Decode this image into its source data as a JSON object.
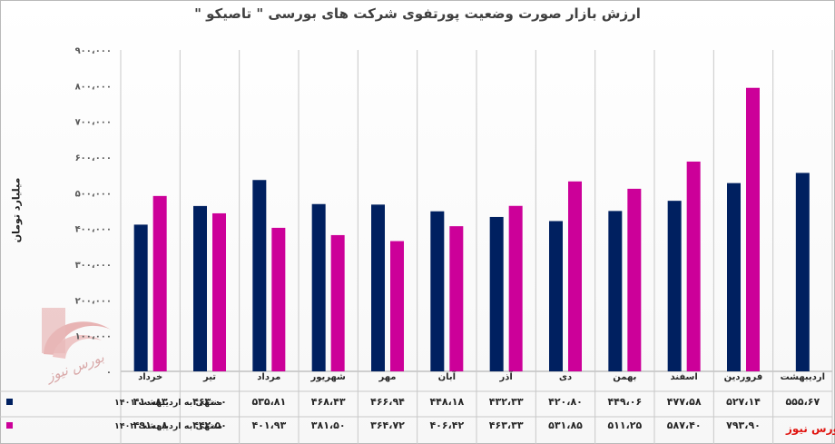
{
  "header": {
    "title": "ارزش بازار صورت وضعیت پورتفوی شرکت های بورسی \" تاصیکو \""
  },
  "brand": {
    "watermark": "بورس نیوز",
    "footer_label": "بورس نیوز"
  },
  "chart_data": {
    "type": "bar",
    "title": "ارزش بازار صورت وضعیت پورتفوی شرکت های بورسی \" تاصیکو \"",
    "ylabel": "میلیارد تومان",
    "xlabel": "",
    "ylim": [
      0,
      900000
    ],
    "yticks": [
      0,
      100000,
      200000,
      300000,
      400000,
      500000,
      600000,
      700000,
      800000,
      900000
    ],
    "ytick_labels": [
      "۰",
      "۱۰۰،۰۰۰",
      "۲۰۰،۰۰۰",
      "۳۰۰،۰۰۰",
      "۴۰۰،۰۰۰",
      "۵۰۰،۰۰۰",
      "۶۰۰،۰۰۰",
      "۷۰۰،۰۰۰",
      "۸۰۰،۰۰۰",
      "۹۰۰،۰۰۰"
    ],
    "grid": "vertical",
    "legend": "bottom-left (data table)",
    "categories": [
      "خرداد",
      "تیر",
      "مرداد",
      "شهریور",
      "مهر",
      "آبان",
      "آذر",
      "دی",
      "بهمن",
      "اسفند",
      "فروردین",
      "اردیبهشت"
    ],
    "series": [
      {
        "name": "منتهی به اردیبهشت ۱۴۰۱",
        "color": "#002060",
        "values": [
          410830,
          463000,
          535810,
          468430,
          466940,
          448180,
          432330,
          420800,
          449060,
          477580,
          527140,
          555670
        ],
        "labels": [
          "۴۱۰،۸۳",
          "۴۶۳،۰۰",
          "۵۳۵،۸۱",
          "۴۶۸،۴۳",
          "۴۶۶،۹۴",
          "۴۴۸،۱۸",
          "۴۳۲،۳۳",
          "۴۲۰،۸۰",
          "۴۴۹،۰۶",
          "۴۷۷،۵۸",
          "۵۲۷،۱۴",
          "۵۵۵،۶۷"
        ]
      },
      {
        "name": "منتهی به اردیبهشت ۱۴۰۲",
        "color": "#cc0099",
        "values": [
          491080,
          442500,
          401930,
          381500,
          364720,
          406420,
          463330,
          531850,
          511250,
          587400,
          793900,
          null
        ],
        "labels": [
          "۴۹۱،۰۸",
          "۴۴۲،۵۰",
          "۴۰۱،۹۳",
          "۳۸۱،۵۰",
          "۳۶۴،۷۲",
          "۴۰۶،۴۲",
          "۴۶۳،۳۳",
          "۵۳۱،۸۵",
          "۵۱۱،۲۵",
          "۵۸۷،۴۰",
          "۷۹۳،۹۰",
          ""
        ]
      }
    ]
  }
}
